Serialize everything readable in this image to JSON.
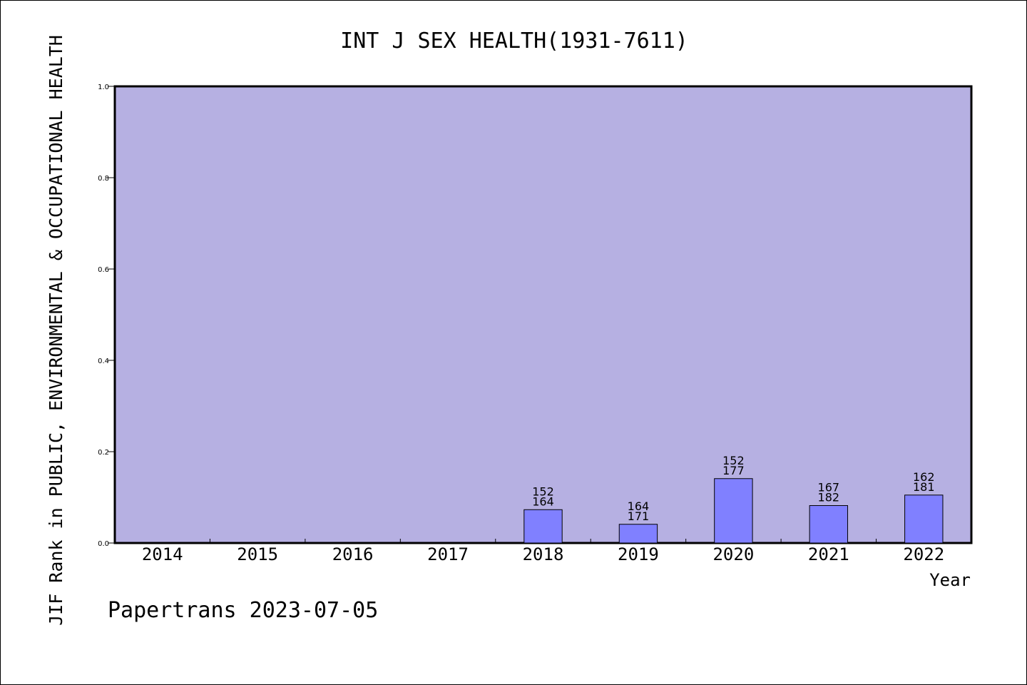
{
  "chart_data": {
    "type": "bar",
    "title": "INT J SEX HEALTH(1931-7611)",
    "xlabel": "Year",
    "ylabel": "JIF Rank in PUBLIC, ENVIRONMENTAL & OCCUPATIONAL HEALTH",
    "ylim": [
      0,
      1.0
    ],
    "yticks": [
      "0.0",
      "0.2",
      "0.4",
      "0.6",
      "0.8",
      "1.0"
    ],
    "categories": [
      "2014",
      "2015",
      "2016",
      "2017",
      "2018",
      "2019",
      "2020",
      "2021",
      "2022"
    ],
    "values": [
      null,
      null,
      null,
      null,
      0.073,
      0.041,
      0.141,
      0.082,
      0.105
    ],
    "label_top": [
      null,
      null,
      null,
      null,
      "152",
      "164",
      "152",
      "167",
      "162"
    ],
    "label_bottom": [
      null,
      null,
      null,
      null,
      "164",
      "171",
      "177",
      "182",
      "181"
    ],
    "grid": false,
    "plot_background": "#b6b0e2",
    "bar_color": "#8080ff"
  },
  "footer": "Papertrans 2023-07-05"
}
